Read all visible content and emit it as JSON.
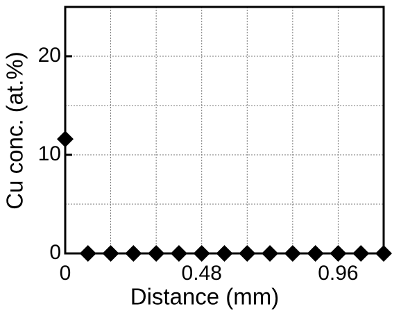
{
  "chart_data": {
    "type": "scatter",
    "x_label": "Distance (mm)",
    "y_label": "Cu conc. (at.%)",
    "x": [
      0,
      0.08,
      0.16,
      0.24,
      0.32,
      0.4,
      0.48,
      0.56,
      0.64,
      0.72,
      0.8,
      0.88,
      0.96,
      1.04,
      1.12
    ],
    "series": [
      {
        "color": "#000000",
        "values": [
          11.6,
          0,
          0,
          0,
          0,
          0,
          0,
          0,
          0,
          0,
          0,
          0,
          0,
          0,
          0
        ]
      }
    ],
    "xlim": [
      0,
      1.12
    ],
    "ylim": [
      0,
      25
    ],
    "xticks": [
      0,
      0.48,
      0.96
    ],
    "yticks": [
      0,
      10,
      20
    ],
    "xgrid": [
      0.16,
      0.32,
      0.48,
      0.64,
      0.8,
      0.96
    ],
    "ygrid": [
      5,
      10,
      15,
      20
    ],
    "grid": true
  }
}
